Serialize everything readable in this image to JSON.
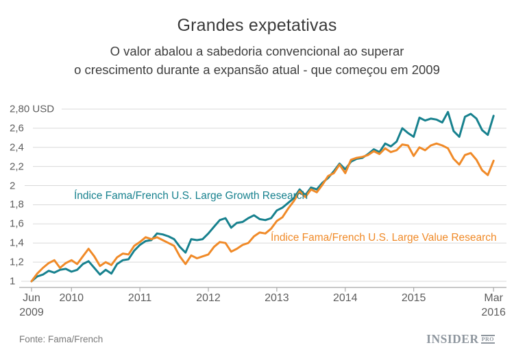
{
  "header": {
    "title": "Grandes expetativas",
    "subtitle_line1": "O valor abalou a sabedoria convencional ao superar",
    "subtitle_line2": "o crescimento durante a expansão atual - que começou em 2009"
  },
  "footer": {
    "source": "Fonte: Fama/French",
    "brand_name": "INSIDER",
    "brand_suffix": "PRO"
  },
  "colors": {
    "growth_line": "#17818E",
    "value_line": "#F08A28",
    "grid": "#D9D9D9",
    "axis": "#A8A8A8",
    "text": "#3A3A3A",
    "tick_label": "#5C5C5C",
    "brand": "#8E969E"
  },
  "chart_data": {
    "type": "line",
    "title": "Grandes expetativas",
    "x_unit": "month",
    "x_start": "Jun 2009",
    "x_end": "Mar 2016",
    "n_points": 82,
    "ylim": [
      1.0,
      2.8
    ],
    "grid": true,
    "legend_position": "inline-labels",
    "y_ticks": [
      {
        "label": "2,80 USD",
        "value": 2.8
      },
      {
        "label": "2,6",
        "value": 2.6
      },
      {
        "label": "2,4",
        "value": 2.4
      },
      {
        "label": "2,2",
        "value": 2.2
      },
      {
        "label": "2",
        "value": 2.0
      },
      {
        "label": "1,8",
        "value": 1.8
      },
      {
        "label": "1,6",
        "value": 1.6
      },
      {
        "label": "1,4",
        "value": 1.4
      },
      {
        "label": "1,2",
        "value": 1.2
      },
      {
        "label": "1",
        "value": 1.0
      }
    ],
    "x_ticks": [
      {
        "line1": "Jun",
        "line2": "2009",
        "month_index": 0
      },
      {
        "line1": "2010",
        "line2": "",
        "month_index": 7
      },
      {
        "line1": "2011",
        "line2": "",
        "month_index": 19
      },
      {
        "line1": "2012",
        "line2": "",
        "month_index": 31
      },
      {
        "line1": "2013",
        "line2": "",
        "month_index": 43
      },
      {
        "line1": "2014",
        "line2": "",
        "month_index": 55
      },
      {
        "line1": "2015",
        "line2": "",
        "month_index": 67
      },
      {
        "line1": "Mar",
        "line2": "2016",
        "month_index": 81
      }
    ],
    "series": [
      {
        "name": "Índice Fama/French U.S. Large Growth Research",
        "color": "#17818E",
        "values": [
          1.0,
          1.05,
          1.07,
          1.11,
          1.09,
          1.12,
          1.13,
          1.1,
          1.12,
          1.18,
          1.21,
          1.14,
          1.07,
          1.12,
          1.08,
          1.18,
          1.22,
          1.23,
          1.32,
          1.38,
          1.42,
          1.43,
          1.5,
          1.49,
          1.47,
          1.44,
          1.36,
          1.3,
          1.44,
          1.43,
          1.44,
          1.5,
          1.57,
          1.64,
          1.66,
          1.56,
          1.61,
          1.62,
          1.66,
          1.69,
          1.65,
          1.64,
          1.66,
          1.74,
          1.77,
          1.82,
          1.87,
          1.96,
          1.9,
          1.98,
          1.96,
          2.03,
          2.08,
          2.15,
          2.23,
          2.17,
          2.25,
          2.28,
          2.29,
          2.33,
          2.38,
          2.35,
          2.44,
          2.41,
          2.46,
          2.6,
          2.55,
          2.51,
          2.71,
          2.68,
          2.7,
          2.69,
          2.66,
          2.77,
          2.57,
          2.51,
          2.72,
          2.75,
          2.7,
          2.58,
          2.53,
          2.73
        ]
      },
      {
        "name": "Índice Fama/French U.S. Large Value Research",
        "color": "#F08A28",
        "values": [
          1.0,
          1.08,
          1.14,
          1.19,
          1.22,
          1.14,
          1.19,
          1.22,
          1.18,
          1.26,
          1.34,
          1.26,
          1.16,
          1.2,
          1.17,
          1.25,
          1.29,
          1.28,
          1.37,
          1.41,
          1.46,
          1.44,
          1.46,
          1.43,
          1.4,
          1.37,
          1.26,
          1.18,
          1.27,
          1.24,
          1.26,
          1.28,
          1.36,
          1.41,
          1.4,
          1.31,
          1.34,
          1.38,
          1.4,
          1.47,
          1.51,
          1.5,
          1.55,
          1.63,
          1.67,
          1.76,
          1.84,
          1.94,
          1.88,
          1.96,
          1.93,
          2.01,
          2.1,
          2.13,
          2.22,
          2.13,
          2.27,
          2.29,
          2.3,
          2.32,
          2.36,
          2.33,
          2.39,
          2.35,
          2.37,
          2.43,
          2.42,
          2.31,
          2.4,
          2.37,
          2.42,
          2.44,
          2.42,
          2.39,
          2.28,
          2.22,
          2.32,
          2.34,
          2.27,
          2.16,
          2.11,
          2.26
        ]
      }
    ]
  }
}
